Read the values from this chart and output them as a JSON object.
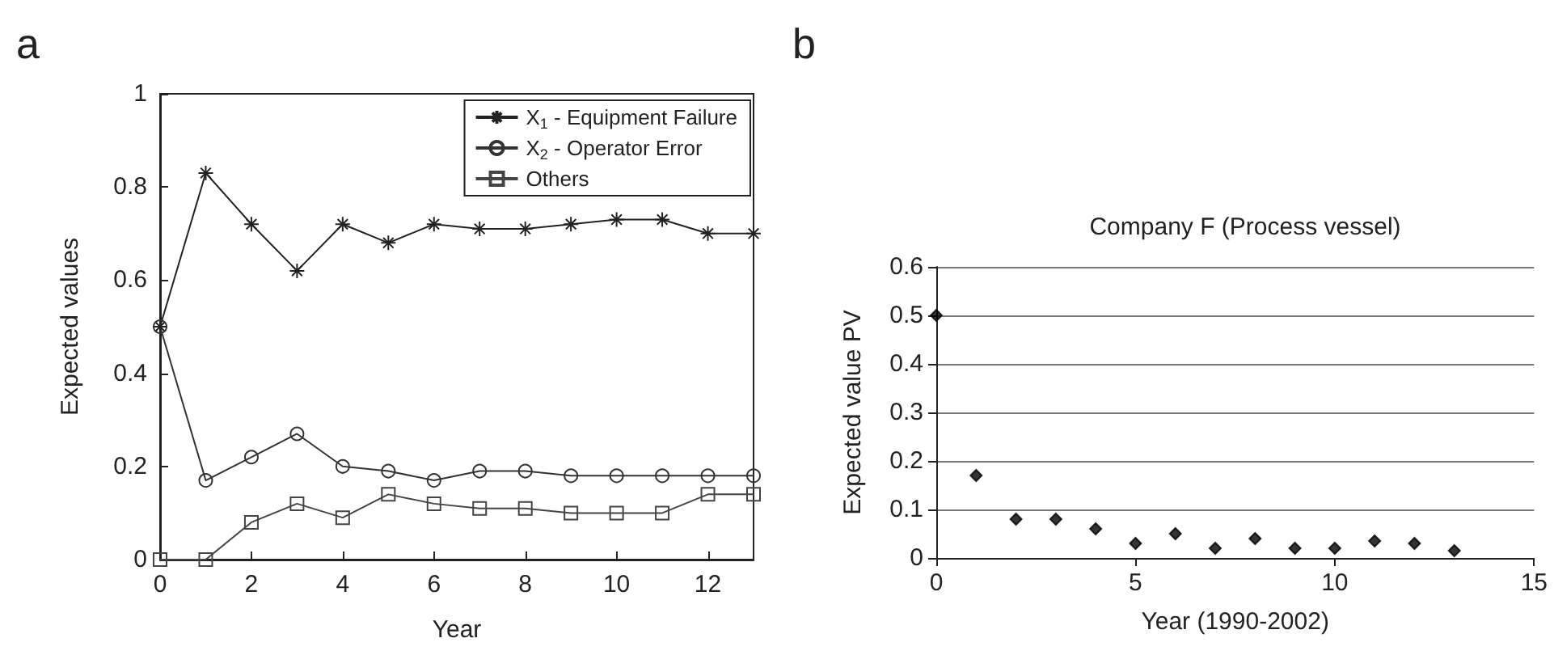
{
  "chart_data": [
    {
      "type": "line",
      "annotations": [
        "a"
      ],
      "xlabel": "Year",
      "ylabel": "Expected values",
      "x": [
        0,
        1,
        2,
        3,
        4,
        5,
        6,
        7,
        8,
        9,
        10,
        11,
        12,
        13
      ],
      "xlim": [
        0,
        13
      ],
      "xticks": [
        0,
        2,
        4,
        6,
        8,
        10,
        12
      ],
      "ylim": [
        0,
        1
      ],
      "yticks": [
        0,
        0.2,
        0.4,
        0.6,
        0.8,
        1
      ],
      "grid": false,
      "legend": "top right",
      "series": [
        {
          "name": "X$_{1}$ - Equipment Failure",
          "color": "#222222",
          "marker": "cross",
          "values": [
            0.5,
            0.83,
            0.72,
            0.62,
            0.72,
            0.68,
            0.72,
            0.71,
            0.71,
            0.72,
            0.73,
            0.73,
            0.7,
            0.7
          ]
        },
        {
          "name": "X$_{2}$ - Operator Error",
          "color": "#333333",
          "marker": "circle",
          "values": [
            0.5,
            0.17,
            0.22,
            0.27,
            0.2,
            0.19,
            0.17,
            0.19,
            0.19,
            0.18,
            0.18,
            0.18,
            0.18,
            0.18
          ]
        },
        {
          "name": "Others",
          "color": "#444444",
          "marker": "square",
          "values": [
            0,
            0,
            0.08,
            0.12,
            0.09,
            0.14,
            0.12,
            0.11,
            0.11,
            0.1,
            0.1,
            0.1,
            0.14,
            0.14
          ]
        }
      ]
    },
    {
      "type": "scatter",
      "annotations": [
        "b"
      ],
      "title": "Company F (Process vessel)",
      "xlabel": "Year (1990-2002)",
      "ylabel": "Expected value PV",
      "x": [
        0,
        1,
        2,
        3,
        4,
        5,
        6,
        7,
        8,
        9,
        10,
        11,
        12,
        13
      ],
      "xlim": [
        0,
        15
      ],
      "xticks": [
        0,
        5,
        10,
        15
      ],
      "ylim": [
        0,
        0.6
      ],
      "yticks": [
        0,
        0.1,
        0.2,
        0.3,
        0.4,
        0.5,
        0.6
      ],
      "grid": "y",
      "marker": "diamond",
      "series": [
        {
          "color": "#000000",
          "values": [
            0.5,
            0.17,
            0.08,
            0.08,
            0.06,
            0.03,
            0.05,
            0.02,
            0.04,
            0.02,
            0.02,
            0.035,
            0.03,
            0.015
          ]
        }
      ]
    }
  ]
}
